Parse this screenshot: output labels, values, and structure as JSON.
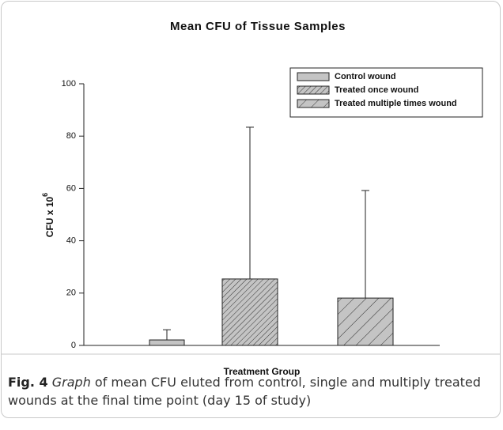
{
  "chart_data": {
    "type": "bar",
    "title": "Mean CFU of Tissue Samples",
    "ylabel": "CFU x 10",
    "ylabel_superscript": "6",
    "xlabel": "Treatment Group",
    "ylim": [
      0,
      100
    ],
    "yticks": [
      0,
      20,
      40,
      60,
      80,
      100
    ],
    "legend": "upper right",
    "series": [
      {
        "name": "Control wound",
        "color": "#c4c4c4",
        "hatch": "solid",
        "values": [
          2.1
        ],
        "errors": [
          3.9
        ]
      },
      {
        "name": "Treated once wound",
        "color": "#c4c4c4",
        "hatch": "dense",
        "values": [
          25.4
        ],
        "errors": [
          58.0
        ]
      },
      {
        "name": "Treated multiple times wound",
        "color": "#c4c4c4",
        "hatch": "sparse",
        "values": [
          18.1
        ],
        "errors": [
          41.1
        ]
      }
    ]
  },
  "caption": {
    "label": "Fig. 4",
    "emphasis": "Graph",
    "text": "of mean CFU eluted from control, single and multiply treated wounds at the final time point (day 15 of study)"
  }
}
